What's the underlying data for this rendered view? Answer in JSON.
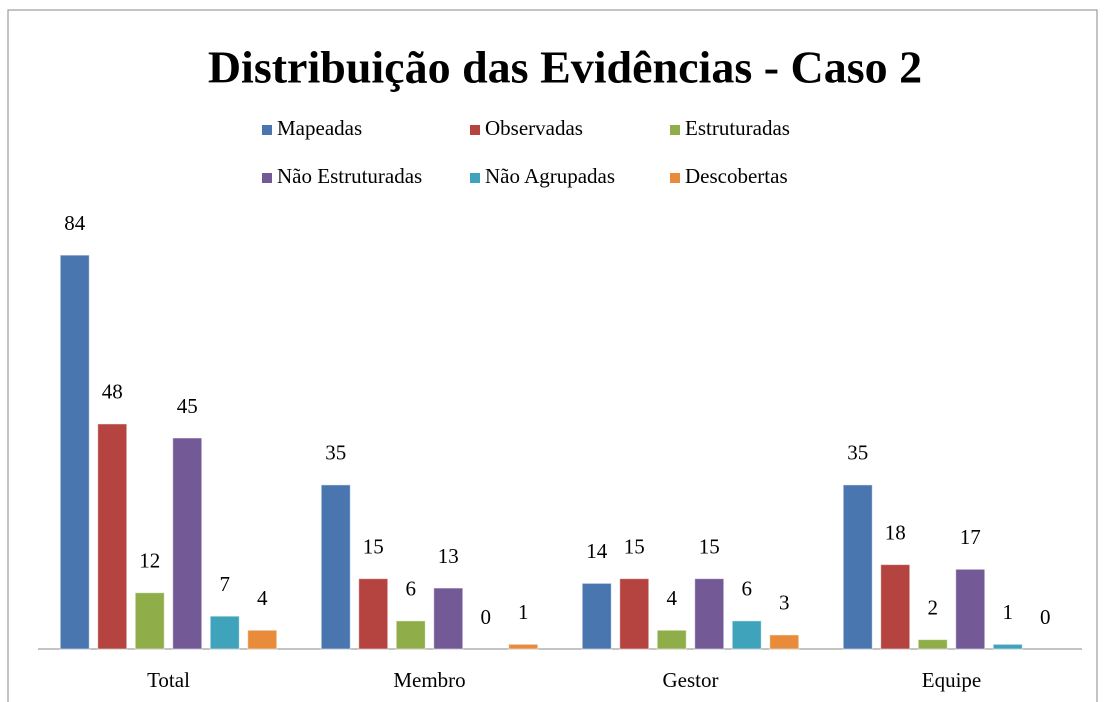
{
  "chart_data": {
    "type": "bar",
    "title": "Distribuição das Evidências - Caso 2",
    "categories": [
      "Total",
      "Membro",
      "Gestor",
      "Equipe"
    ],
    "series": [
      {
        "name": "Mapeadas",
        "color": "#4a76b0",
        "values": [
          84,
          35,
          14,
          35
        ]
      },
      {
        "name": "Observadas",
        "color": "#b54441",
        "values": [
          48,
          15,
          15,
          18
        ]
      },
      {
        "name": "Estruturadas",
        "color": "#8fad48",
        "values": [
          12,
          6,
          4,
          2
        ]
      },
      {
        "name": "Não Estruturadas",
        "color": "#735995",
        "values": [
          45,
          13,
          15,
          17
        ]
      },
      {
        "name": "Não Agrupadas",
        "color": "#40a3bc",
        "values": [
          7,
          0,
          6,
          1
        ]
      },
      {
        "name": "Descobertas",
        "color": "#e88b3a",
        "values": [
          4,
          1,
          3,
          0
        ]
      }
    ],
    "ylim": [
      0,
      90
    ],
    "legend": "top"
  }
}
